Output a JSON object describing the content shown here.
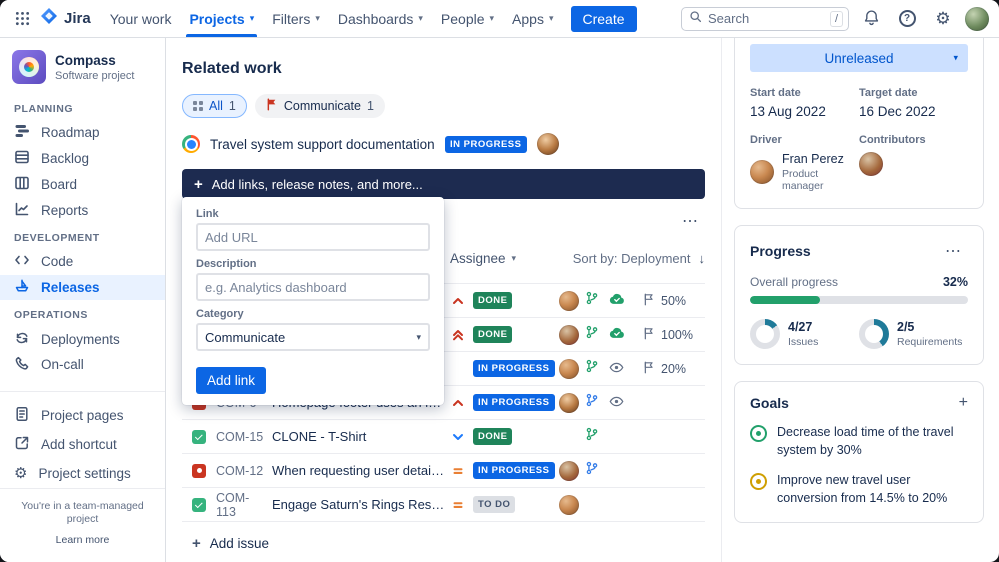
{
  "icons": {
    "chevron_down": "▾",
    "arrow_down": "↓",
    "plus": "+",
    "ellipsis": "⋯",
    "gear": "⚙",
    "question_mark": "?"
  },
  "navbar": {
    "brand": "Jira",
    "items": [
      {
        "label": "Your work",
        "chevron": false,
        "active": false
      },
      {
        "label": "Projects",
        "chevron": true,
        "active": true
      },
      {
        "label": "Filters",
        "chevron": true,
        "active": false
      },
      {
        "label": "Dashboards",
        "chevron": true,
        "active": false
      },
      {
        "label": "People",
        "chevron": true,
        "active": false
      },
      {
        "label": "Apps",
        "chevron": true,
        "active": false
      }
    ],
    "create_label": "Create",
    "search": {
      "placeholder": "Search",
      "shortcut_hint": "/"
    }
  },
  "sidebar": {
    "project": {
      "name": "Compass",
      "type": "Software project"
    },
    "sections": [
      {
        "title": "PLANNING",
        "items": [
          {
            "label": "Roadmap"
          },
          {
            "label": "Backlog"
          },
          {
            "label": "Board"
          },
          {
            "label": "Reports"
          }
        ]
      },
      {
        "title": "DEVELOPMENT",
        "items": [
          {
            "label": "Code"
          },
          {
            "label": "Releases",
            "selected": true
          }
        ]
      },
      {
        "title": "OPERATIONS",
        "items": [
          {
            "label": "Deployments"
          },
          {
            "label": "On-call"
          }
        ]
      }
    ],
    "shortcuts": [
      {
        "label": "Project pages"
      },
      {
        "label": "Add shortcut"
      },
      {
        "label": "Project settings"
      }
    ],
    "footer": {
      "note": "You're in a team-managed project",
      "link": "Learn more"
    }
  },
  "related_work": {
    "title": "Related work",
    "filters": [
      {
        "label": "All",
        "count": "1",
        "selected": true
      },
      {
        "label": "Communicate",
        "count": "1",
        "selected": false
      }
    ],
    "link_item": {
      "title": "Travel system support documentation",
      "status": "IN PROGRESS"
    },
    "add_bar_label": "Add links, release notes, and more..."
  },
  "link_form": {
    "link_label": "Link",
    "link_placeholder": "Add URL",
    "description_label": "Description",
    "description_placeholder": "e.g. Analytics dashboard",
    "category_label": "Category",
    "category_value": "Communicate",
    "submit_label": "Add link"
  },
  "issues": {
    "assignee_filter": "Assignee",
    "sort_label": "Sort by: Deployment",
    "rows": [
      {
        "key": "",
        "summary": "",
        "type": "",
        "priority": "high",
        "status": "DONE",
        "has_avatar": true,
        "dev": [
          "branch",
          "deployment"
        ],
        "progress": "50%"
      },
      {
        "key": "",
        "summary": "",
        "type": "",
        "priority": "highest",
        "status": "DONE",
        "has_avatar": true,
        "dev": [
          "branch",
          "deployment"
        ],
        "progress": "100%"
      },
      {
        "key": "",
        "summary": "",
        "type": "",
        "priority": "",
        "status": "IN PROGRESS",
        "has_avatar": true,
        "dev": [
          "branch",
          "watchers"
        ],
        "progress": "20%"
      },
      {
        "key": "COM-6",
        "summary": "Homepage footer uses an inline...",
        "type": "bug",
        "priority": "high",
        "status": "IN PROGRESS",
        "has_avatar": true,
        "dev": [
          "branch",
          "watchers"
        ],
        "progress": ""
      },
      {
        "key": "COM-15",
        "summary": "CLONE - T-Shirt",
        "type": "task",
        "priority": "low",
        "status": "DONE",
        "has_avatar": false,
        "dev": [
          "branch"
        ],
        "progress": ""
      },
      {
        "key": "COM-12",
        "summary": "When requesting user details the...",
        "type": "bug",
        "priority": "medium",
        "status": "IN PROGRESS",
        "has_avatar": true,
        "dev": [
          "branch"
        ],
        "progress": ""
      },
      {
        "key": "COM-113",
        "summary": "Engage Saturn's Rings Resort as a...",
        "type": "task",
        "priority": "medium",
        "status": "TO DO",
        "has_avatar": true,
        "dev": [],
        "progress": ""
      }
    ],
    "add_issue_label": "Add issue"
  },
  "release": {
    "version_status": "Unreleased",
    "start_date": {
      "label": "Start date",
      "value": "13 Aug 2022"
    },
    "target_date": {
      "label": "Target date",
      "value": "16 Dec 2022"
    },
    "driver": {
      "label": "Driver",
      "name": "Fran Perez",
      "role": "Product manager"
    },
    "contributors_label": "Contributors",
    "progress": {
      "title": "Progress",
      "overall_label": "Overall progress",
      "overall_pct": "32%",
      "donuts": [
        {
          "value": "4/27",
          "label": "Issues",
          "pct": 15,
          "color": "#1F7A99"
        },
        {
          "value": "2/5",
          "label": "Requirements",
          "pct": 40,
          "color": "#1F7A99"
        }
      ]
    },
    "goals": {
      "title": "Goals",
      "items": [
        {
          "text": "Decrease load time of the travel system by 30%",
          "color": "green"
        },
        {
          "text": "Improve new travel user conversion from 14.5% to 20%",
          "color": "yellow"
        }
      ]
    }
  }
}
